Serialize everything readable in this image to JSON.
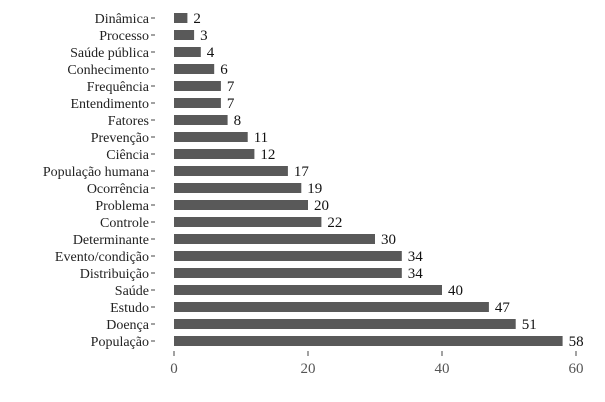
{
  "chart_data": {
    "type": "bar",
    "orientation": "horizontal",
    "title": "",
    "xlabel": "",
    "ylabel": "",
    "categories": [
      "Dinâmica",
      "Processo",
      "Saúde pública",
      "Conhecimento",
      "Frequência",
      "Entendimento",
      "Fatores",
      "Prevenção",
      "Ciência",
      "População humana",
      "Ocorrência",
      "Problema",
      "Controle",
      "Determinante",
      "Evento/condição",
      "Distribuição",
      "Saúde",
      "Estudo",
      "Doença",
      "População"
    ],
    "values": [
      2,
      3,
      4,
      6,
      7,
      7,
      8,
      11,
      12,
      17,
      19,
      20,
      22,
      30,
      34,
      34,
      40,
      47,
      51,
      58
    ],
    "value_labels": [
      "2",
      "3",
      "4",
      "6",
      "7",
      "7",
      "8",
      "11",
      "12",
      "17",
      "19",
      "20",
      "22",
      "30",
      "34",
      "34",
      "40",
      "47",
      "51",
      "58"
    ],
    "xlim": [
      0,
      60
    ],
    "xticks": [
      0,
      20,
      40,
      60
    ],
    "xtick_labels": [
      "0",
      "20",
      "40",
      "60"
    ],
    "bar_color": "#595959",
    "grid": false,
    "legend": "none"
  }
}
